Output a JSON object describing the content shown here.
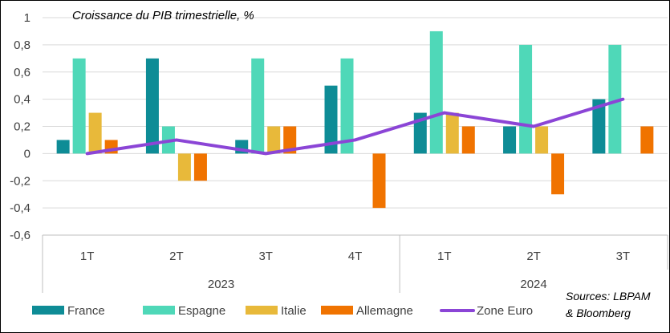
{
  "chart_data": {
    "type": "bar",
    "title": "Croissance du PIB trimestrielle, %",
    "source": [
      "Sources: LBPAM",
      "& Bloomberg"
    ],
    "categories": [
      "1T",
      "2T",
      "3T",
      "4T",
      "1T",
      "2T",
      "3T"
    ],
    "groups": [
      {
        "label": "2023",
        "span": 4
      },
      {
        "label": "2024",
        "span": 3
      }
    ],
    "ylim": [
      -0.6,
      1
    ],
    "yticks": [
      -0.6,
      -0.4,
      -0.2,
      0,
      0.2,
      0.4,
      0.6,
      0.8,
      1
    ],
    "ytick_labels": [
      "-0,6",
      "-0,4",
      "-0,2",
      "0",
      "0,2",
      "0,4",
      "0,6",
      "0,8",
      "1"
    ],
    "grid": true,
    "legend_position": "bottom",
    "series": [
      {
        "name": "France",
        "kind": "bar",
        "color": "#0E8C96",
        "values": [
          0.1,
          0.7,
          0.1,
          0.5,
          0.3,
          0.2,
          0.4
        ]
      },
      {
        "name": "Espagne",
        "kind": "bar",
        "color": "#4FD8B8",
        "values": [
          0.7,
          0.2,
          0.7,
          0.7,
          0.9,
          0.8,
          0.8
        ]
      },
      {
        "name": "Italie",
        "kind": "bar",
        "color": "#E8B93A",
        "values": [
          0.3,
          -0.2,
          0.2,
          0.0,
          0.3,
          0.2,
          0.0
        ]
      },
      {
        "name": "Allemagne",
        "kind": "bar",
        "color": "#F07300",
        "values": [
          0.1,
          -0.2,
          0.2,
          -0.4,
          0.2,
          -0.3,
          0.2
        ]
      },
      {
        "name": "Zone Euro",
        "kind": "line",
        "color": "#8B45D6",
        "values": [
          0.0,
          0.1,
          0.0,
          0.1,
          0.3,
          0.2,
          0.4
        ]
      }
    ]
  }
}
